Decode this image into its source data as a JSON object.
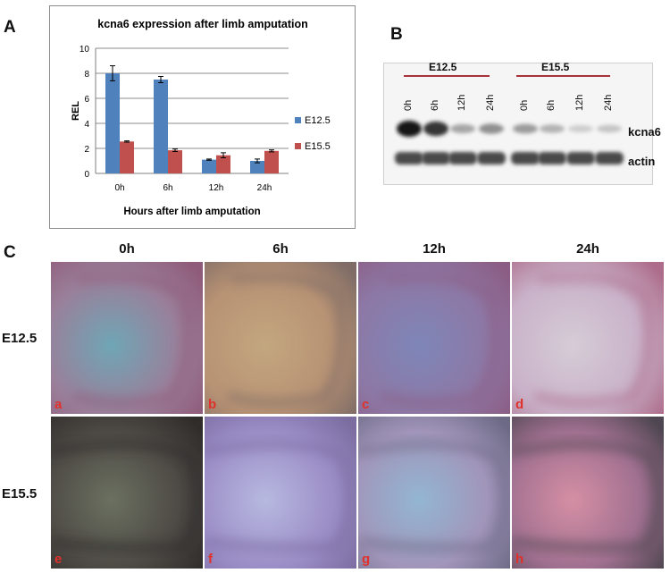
{
  "panels": {
    "a": "A",
    "b": "B",
    "c": "C"
  },
  "chart_data": {
    "type": "bar",
    "title": "kcna6 expression after limb amputation",
    "xlabel": "Hours after limb amputation",
    "ylabel": "REL",
    "categories": [
      "0h",
      "6h",
      "12h",
      "24h"
    ],
    "ylim": [
      0,
      10
    ],
    "yticks": [
      "0",
      "2",
      "4",
      "6",
      "8",
      "10"
    ],
    "grid": true,
    "legend_position": "right",
    "series": [
      {
        "name": "E12.5",
        "values": [
          8.0,
          7.5,
          1.1,
          1.0
        ],
        "errors": [
          0.6,
          0.25,
          0.05,
          0.15
        ],
        "color": "#4f81bd"
      },
      {
        "name": "E15.5",
        "values": [
          2.55,
          1.85,
          1.45,
          1.8
        ],
        "errors": [
          0.05,
          0.1,
          0.2,
          0.08
        ],
        "color": "#c0504d"
      }
    ]
  },
  "blot": {
    "groups": [
      "E12.5",
      "E15.5"
    ],
    "lanes": [
      "0h",
      "6h",
      "12h",
      "24h",
      "0h",
      "6h",
      "12h",
      "24h"
    ],
    "rows": [
      "kcna6",
      "actin"
    ],
    "group_line_color": "#a8323a",
    "kcna6_intensity": [
      1.0,
      0.85,
      0.35,
      0.45,
      0.4,
      0.3,
      0.18,
      0.22
    ]
  },
  "grid_panels": {
    "columns": [
      "0h",
      "6h",
      "12h",
      "24h"
    ],
    "rows": [
      "E12.5",
      "E15.5"
    ],
    "letters": [
      [
        "a",
        "b",
        "c",
        "d"
      ],
      [
        "e",
        "f",
        "g",
        "h"
      ]
    ]
  }
}
